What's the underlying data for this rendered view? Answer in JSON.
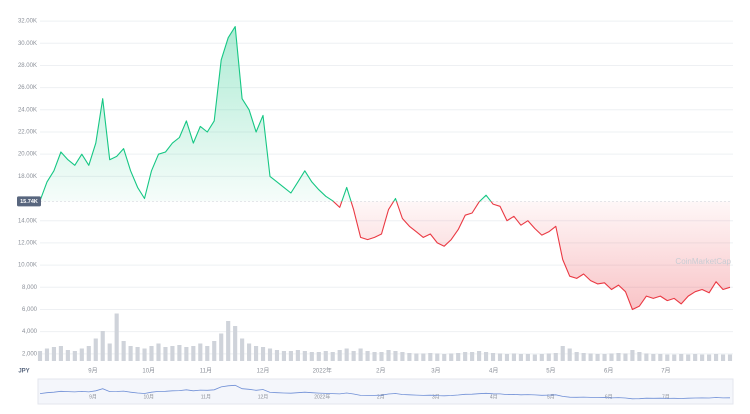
{
  "chart_data": {
    "type": "line",
    "currency_label": "JPY",
    "watermark": "CoinMarketCap",
    "baseline": 15740,
    "baseline_label": "15.74K",
    "up_color": "#16c784",
    "down_color": "#ea3943",
    "volume_color": "#cfd3da",
    "grid": true,
    "ylim": [
      0,
      33900
    ],
    "yticks": [
      {
        "value": 2000,
        "label": "2,000"
      },
      {
        "value": 4000,
        "label": "4,000"
      },
      {
        "value": 6000,
        "label": "6,000"
      },
      {
        "value": 8000,
        "label": "8,000"
      },
      {
        "value": 10000,
        "label": "10.00K"
      },
      {
        "value": 12000,
        "label": "12.00K"
      },
      {
        "value": 14000,
        "label": "14.00K"
      },
      {
        "value": 18000,
        "label": "18.00K"
      },
      {
        "value": 20000,
        "label": "20.00K"
      },
      {
        "value": 22000,
        "label": "22.00K"
      },
      {
        "value": 24000,
        "label": "24.00K"
      },
      {
        "value": 26000,
        "label": "26.00K"
      },
      {
        "value": 28000,
        "label": "28.00K"
      },
      {
        "value": 30000,
        "label": "30.00K"
      },
      {
        "value": 32000,
        "label": "32.00K"
      }
    ],
    "xlim": [
      0,
      99
    ],
    "xticks": [
      {
        "value": 7.6,
        "label": "9月"
      },
      {
        "value": 15.6,
        "label": "10月"
      },
      {
        "value": 23.8,
        "label": "11月"
      },
      {
        "value": 32.0,
        "label": "12月"
      },
      {
        "value": 40.5,
        "label": "2022年"
      },
      {
        "value": 48.9,
        "label": "2月"
      },
      {
        "value": 56.8,
        "label": "3月"
      },
      {
        "value": 65.1,
        "label": "4月"
      },
      {
        "value": 73.3,
        "label": "5月"
      },
      {
        "value": 81.6,
        "label": "6月"
      },
      {
        "value": 89.8,
        "label": "7月"
      }
    ],
    "values": [
      15800,
      17500,
      18500,
      20200,
      19500,
      19000,
      20000,
      19000,
      21000,
      25000,
      19500,
      19800,
      20500,
      18500,
      17000,
      16000,
      18500,
      20000,
      20200,
      21000,
      21500,
      23000,
      21000,
      22500,
      22000,
      23000,
      28500,
      30500,
      31500,
      25000,
      24000,
      22000,
      23500,
      18000,
      17500,
      17000,
      16500,
      17500,
      18500,
      17500,
      16800,
      16200,
      15800,
      15200,
      17000,
      15000,
      12500,
      12300,
      12500,
      12800,
      15000,
      16000,
      14200,
      13500,
      13000,
      12500,
      12800,
      12000,
      11700,
      12300,
      13200,
      14500,
      14700,
      15700,
      16300,
      15500,
      15300,
      14000,
      14400,
      13600,
      14000,
      13300,
      12700,
      13000,
      13500,
      10500,
      9000,
      8800,
      9200,
      8600,
      8300,
      8400,
      7800,
      8200,
      7600,
      6000,
      6300,
      7200,
      7000,
      7200,
      6800,
      7000,
      6500,
      7200,
      7600,
      7800,
      7500,
      8500,
      7800,
      8000
    ],
    "volume_ylim": [
      0,
      100
    ],
    "volume": [
      20,
      25,
      28,
      30,
      22,
      20,
      25,
      30,
      45,
      60,
      35,
      95,
      40,
      30,
      28,
      25,
      30,
      35,
      28,
      30,
      32,
      28,
      30,
      35,
      30,
      40,
      55,
      80,
      70,
      45,
      35,
      30,
      28,
      25,
      22,
      20,
      20,
      22,
      20,
      18,
      18,
      20,
      18,
      22,
      25,
      20,
      25,
      20,
      18,
      18,
      22,
      20,
      18,
      16,
      15,
      15,
      16,
      15,
      14,
      15,
      16,
      18,
      18,
      20,
      18,
      16,
      15,
      14,
      15,
      14,
      14,
      13,
      14,
      15,
      16,
      30,
      25,
      18,
      16,
      15,
      14,
      14,
      15,
      16,
      15,
      22,
      18,
      15,
      14,
      14,
      13,
      13,
      14,
      13,
      14,
      13,
      13,
      14,
      13,
      13
    ]
  }
}
